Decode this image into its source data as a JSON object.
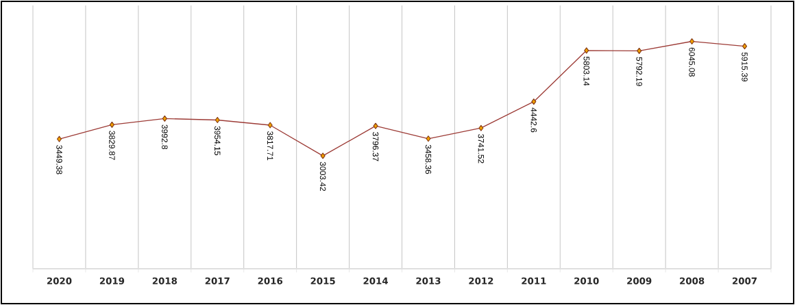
{
  "chart_data": {
    "type": "line",
    "categories": [
      "2020",
      "2019",
      "2018",
      "2017",
      "2016",
      "2015",
      "2014",
      "2013",
      "2012",
      "2011",
      "2010",
      "2009",
      "2008",
      "2007"
    ],
    "series": [
      {
        "color": "#9c3a35",
        "values": [
          3449.38,
          3829.87,
          3992.8,
          3954.15,
          3817.71,
          3003.42,
          3796.37,
          3458.36,
          3741.52,
          4442.6,
          5803.14,
          5792.19,
          6045.08,
          5915.39
        ]
      }
    ],
    "ylim": [
      0,
      7000
    ],
    "data_labels": true,
    "grid": "x",
    "marker": "diamond",
    "line_style": "solid",
    "tick_labels": "x"
  }
}
